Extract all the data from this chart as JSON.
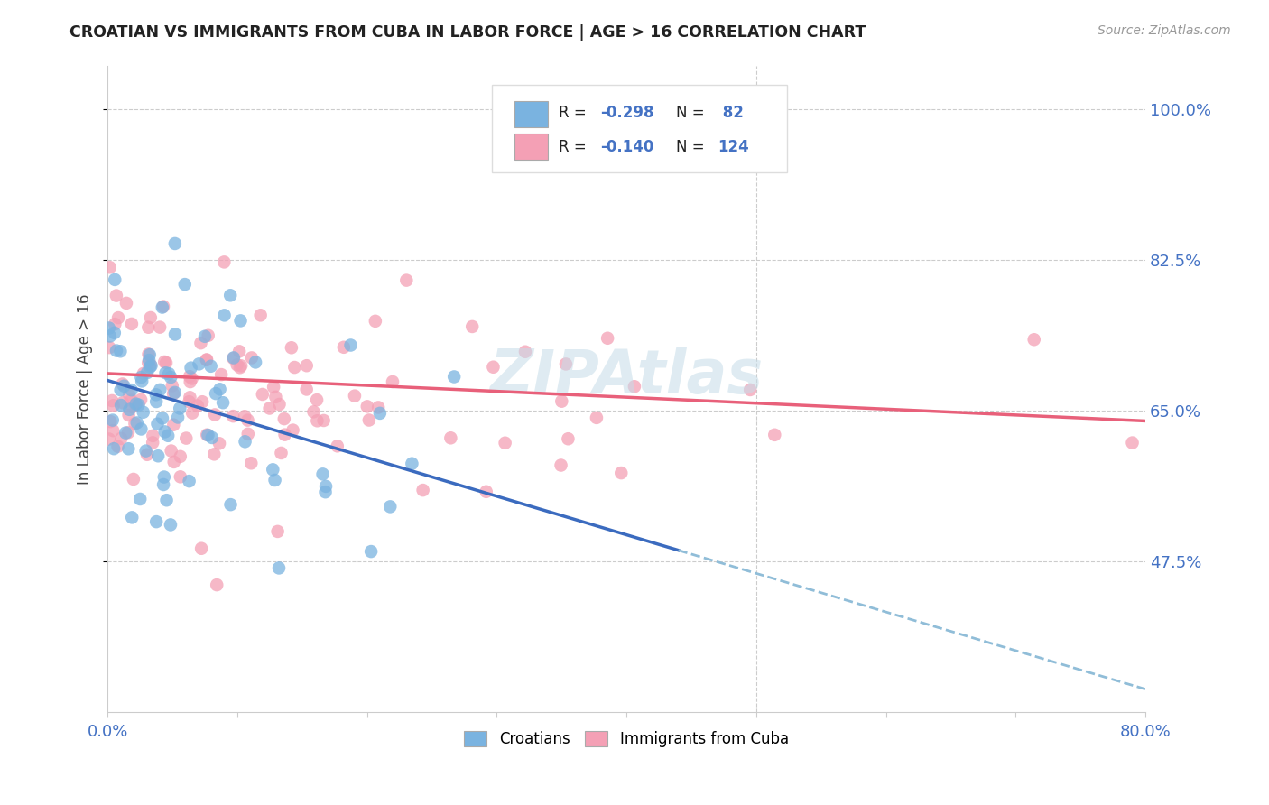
{
  "title": "CROATIAN VS IMMIGRANTS FROM CUBA IN LABOR FORCE | AGE > 16 CORRELATION CHART",
  "source": "Source: ZipAtlas.com",
  "ylabel": "In Labor Force | Age > 16",
  "ytick_labels": [
    "100.0%",
    "82.5%",
    "65.0%",
    "47.5%"
  ],
  "ytick_values": [
    1.0,
    0.825,
    0.65,
    0.475
  ],
  "legend_label1": "Croatians",
  "legend_label2": "Immigrants from Cuba",
  "R1": -0.298,
  "N1": 82,
  "R2": -0.14,
  "N2": 124,
  "color1": "#7ab3e0",
  "color2": "#f4a0b5",
  "line_color1": "#3b6bbf",
  "line_color2": "#e8607a",
  "dashed_color": "#90bdd8",
  "axis_label_color": "#4472c4",
  "background_color": "#ffffff",
  "x_min": 0.0,
  "x_max": 0.8,
  "y_min": 0.3,
  "y_max": 1.05,
  "blue_line_x0": 0.0,
  "blue_line_y0": 0.685,
  "blue_line_x1": 0.44,
  "blue_line_y1": 0.488,
  "pink_line_x0": 0.0,
  "pink_line_y0": 0.693,
  "pink_line_x1": 0.8,
  "pink_line_y1": 0.638
}
